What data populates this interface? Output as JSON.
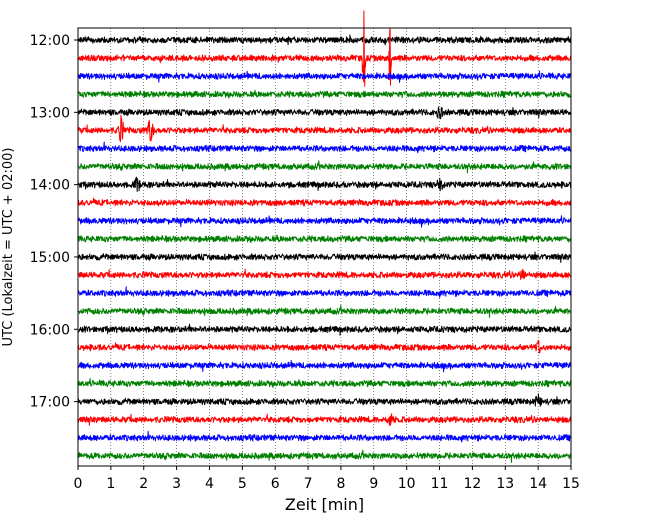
{
  "chart_data": {
    "type": "line",
    "title": "",
    "xlabel": "Zeit  [min]",
    "ylabel": "UTC (Lokalzeit = UTC + 02:00)",
    "xlim": [
      0,
      15
    ],
    "x_ticks": [
      "0",
      "1",
      "2",
      "3",
      "4",
      "5",
      "6",
      "7",
      "8",
      "9",
      "10",
      "11",
      "12",
      "13",
      "14",
      "15"
    ],
    "y_tick_labels": [
      "12:00",
      "13:00",
      "14:00",
      "15:00",
      "16:00",
      "17:00"
    ],
    "traces_per_hour": 4,
    "trace_minutes": 15,
    "start_time": "12:00",
    "trace_count": 24,
    "color_cycle": [
      "#000000",
      "#ff0000",
      "#0000ff",
      "#008000"
    ],
    "vertical_grid": "dotted",
    "events": [
      {
        "trace_start": "12:15",
        "minute": 8.7,
        "size": "large"
      },
      {
        "trace_start": "12:15",
        "minute": 9.5,
        "size": "large"
      },
      {
        "trace_start": "13:15",
        "minute": 1.3,
        "size": "medium"
      },
      {
        "trace_start": "13:15",
        "minute": 2.2,
        "size": "medium"
      },
      {
        "trace_start": "13:00",
        "minute": 11.0,
        "size": "small"
      },
      {
        "trace_start": "14:00",
        "minute": 11.0,
        "size": "small"
      },
      {
        "trace_start": "14:00",
        "minute": 1.8,
        "size": "small"
      },
      {
        "trace_start": "16:15",
        "minute": 14.0,
        "size": "small"
      },
      {
        "trace_start": "15:15",
        "minute": 13.5,
        "size": "small"
      },
      {
        "trace_start": "17:15",
        "minute": 9.5,
        "size": "small"
      },
      {
        "trace_start": "17:00",
        "minute": 14.0,
        "size": "small"
      }
    ]
  }
}
